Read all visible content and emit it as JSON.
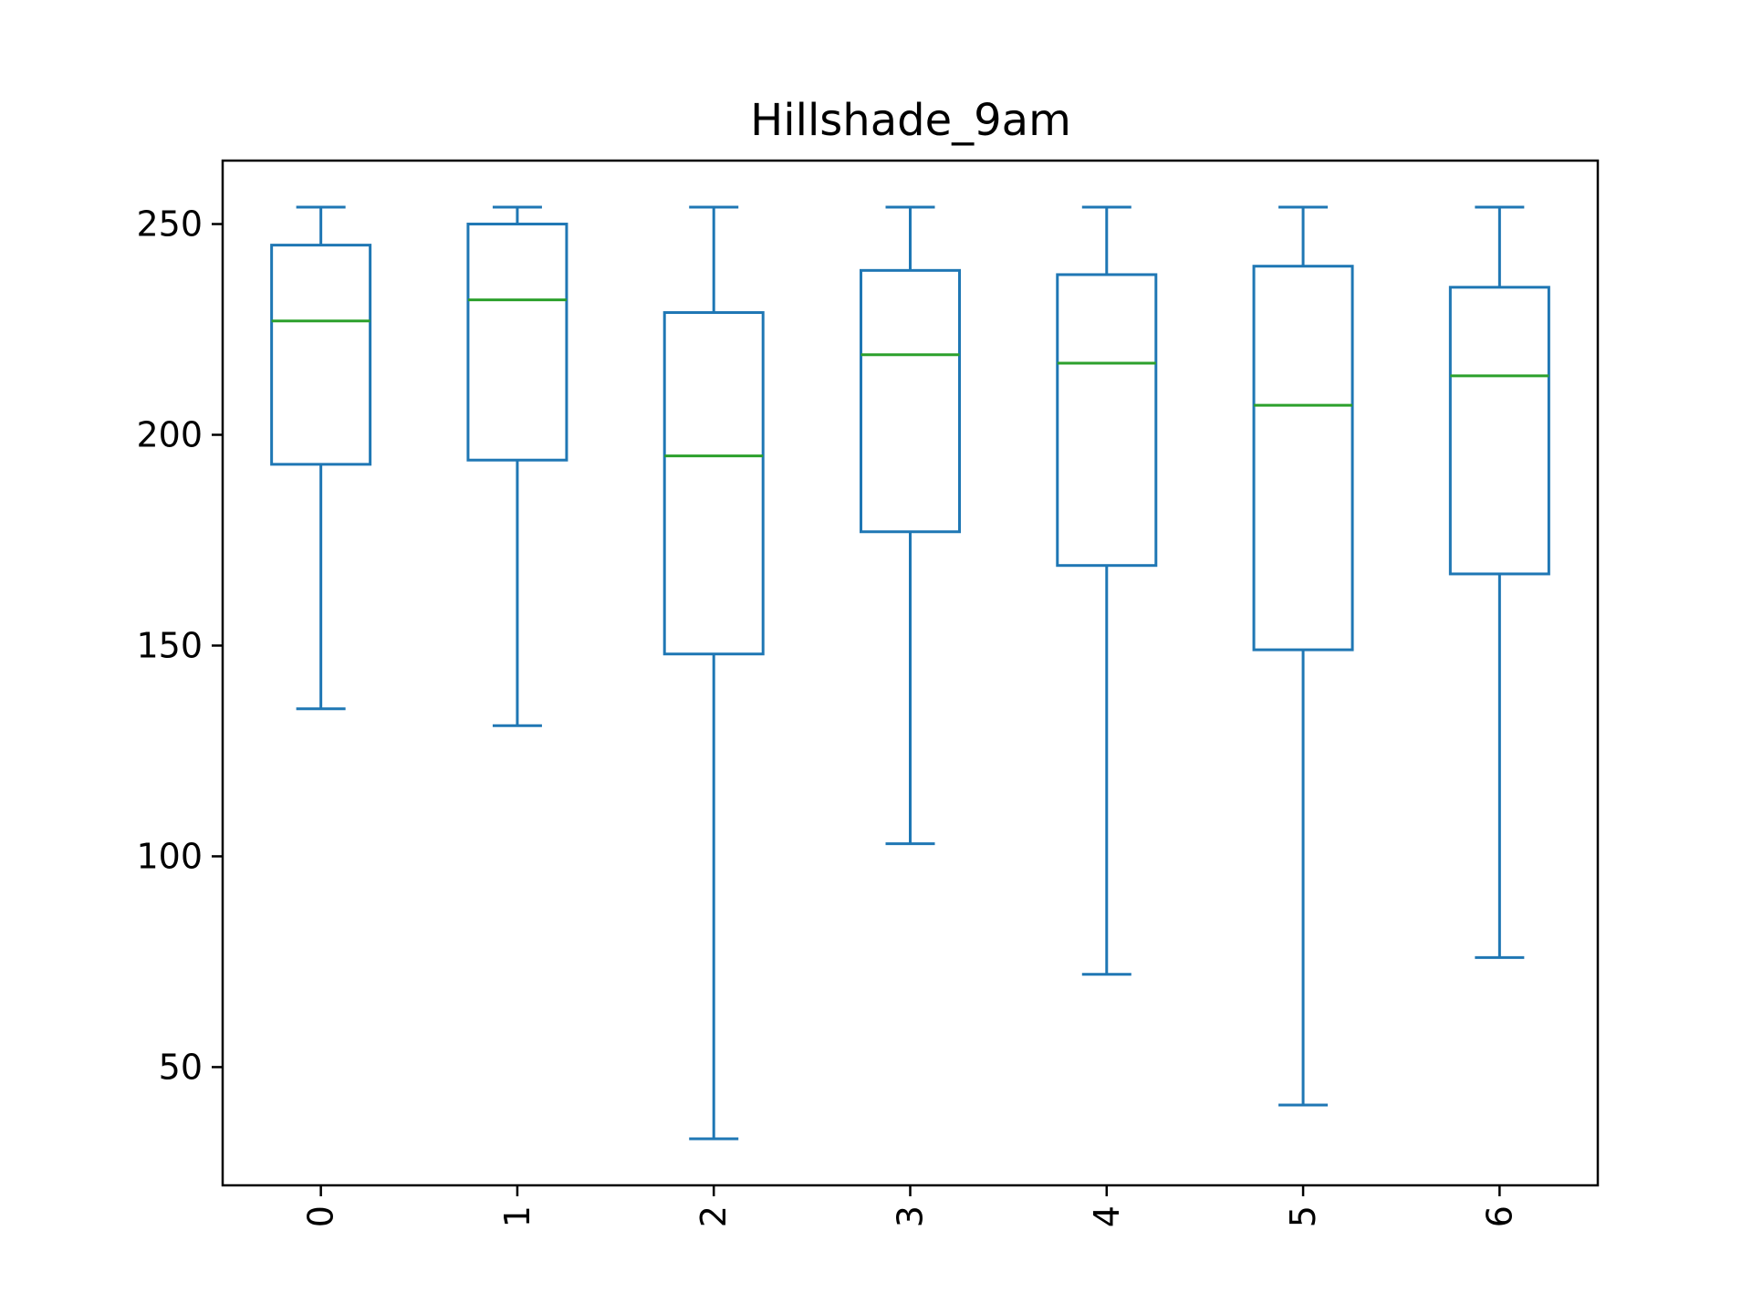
{
  "chart_data": {
    "type": "box",
    "title": "Hillshade_9am",
    "xlabel": "",
    "ylabel": "",
    "categories": [
      "0",
      "1",
      "2",
      "3",
      "4",
      "5",
      "6"
    ],
    "boxes": [
      {
        "whisker_low": 135,
        "q1": 193,
        "median": 227,
        "q3": 245,
        "whisker_high": 254
      },
      {
        "whisker_low": 131,
        "q1": 194,
        "median": 232,
        "q3": 250,
        "whisker_high": 254
      },
      {
        "whisker_low": 33,
        "q1": 148,
        "median": 195,
        "q3": 229,
        "whisker_high": 254
      },
      {
        "whisker_low": 103,
        "q1": 177,
        "median": 219,
        "q3": 239,
        "whisker_high": 254
      },
      {
        "whisker_low": 72,
        "q1": 169,
        "median": 217,
        "q3": 238,
        "whisker_high": 254
      },
      {
        "whisker_low": 41,
        "q1": 149,
        "median": 207,
        "q3": 240,
        "whisker_high": 254
      },
      {
        "whisker_low": 76,
        "q1": 167,
        "median": 214,
        "q3": 235,
        "whisker_high": 254
      }
    ],
    "y_ticks": [
      50,
      100,
      150,
      200,
      250
    ],
    "ylim": [
      21.95,
      265.05
    ],
    "x_tick_rotation": "vertical",
    "grid": false,
    "colors": {
      "box": "#1f77b4",
      "median": "#2ca02c",
      "axes": "#000000"
    }
  }
}
